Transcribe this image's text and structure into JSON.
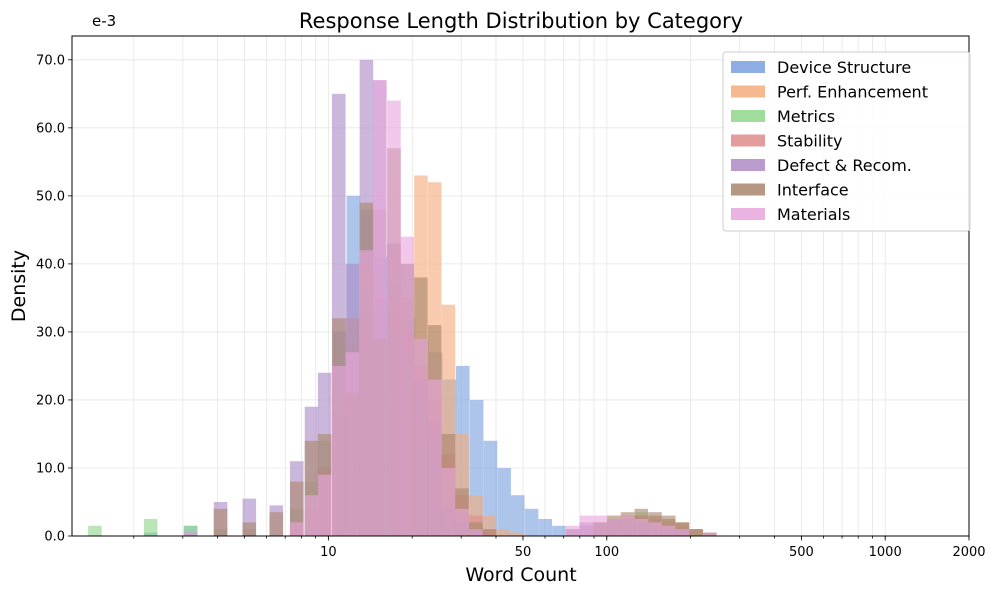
{
  "chart_data": {
    "type": "histogram",
    "title": "Response Length Distribution by Category",
    "xlabel": "Word Count",
    "ylabel": "Density",
    "offset_label": "e-3",
    "x_scale": "log",
    "xlim": [
      1.2,
      2000
    ],
    "ylim": [
      0,
      73.5
    ],
    "x_tick_labels": [
      "10",
      "50",
      "100",
      "500",
      "1000",
      "2000"
    ],
    "x_tick_values": [
      10,
      50,
      100,
      500,
      1000,
      2000
    ],
    "y_tick_labels": [
      "0.0",
      "10.0",
      "20.0",
      "30.0",
      "40.0",
      "50.0",
      "60.0",
      "70.0"
    ],
    "y_tick_values": [
      0,
      10,
      20,
      30,
      40,
      50,
      60,
      70
    ],
    "grid": true,
    "legend_position": "top-right",
    "series": [
      {
        "name": "Device Structure",
        "color": "#7a9fdf",
        "bins": [
          [
            2.3,
            0.5
          ],
          [
            3.2,
            1.5
          ],
          [
            8.7,
            2
          ],
          [
            11,
            30
          ],
          [
            12.3,
            50
          ],
          [
            13.8,
            48
          ],
          [
            15.4,
            41
          ],
          [
            17.3,
            37
          ],
          [
            19.4,
            32
          ],
          [
            21.7,
            29
          ],
          [
            24.3,
            27
          ],
          [
            27.2,
            23
          ],
          [
            30.4,
            25
          ],
          [
            34.1,
            20
          ],
          [
            38.2,
            14
          ],
          [
            42.8,
            10
          ],
          [
            47.9,
            6
          ],
          [
            53.7,
            4
          ],
          [
            60.1,
            2.5
          ],
          [
            67.3,
            1.5
          ],
          [
            75.4,
            1
          ],
          [
            84.5,
            1.5
          ],
          [
            94.6,
            2
          ],
          [
            106,
            2.5
          ],
          [
            118.7,
            2.5
          ],
          [
            133,
            3
          ],
          [
            149,
            2.5
          ],
          [
            166.9,
            2
          ],
          [
            186.9,
            1.5
          ],
          [
            209.3,
            1
          ],
          [
            234.5,
            0.5
          ]
        ]
      },
      {
        "name": "Perf. Enhancement",
        "color": "#f4ab7c",
        "bins": [
          [
            7.7,
            1
          ],
          [
            8.7,
            2
          ],
          [
            9.7,
            5
          ],
          [
            10.9,
            12
          ],
          [
            12.2,
            28
          ],
          [
            13.7,
            40
          ],
          [
            15.3,
            48
          ],
          [
            17.2,
            43
          ],
          [
            19.2,
            35
          ],
          [
            21.5,
            53
          ],
          [
            24.1,
            52
          ],
          [
            27,
            34
          ],
          [
            30.2,
            15
          ],
          [
            33.9,
            6
          ],
          [
            37.9,
            3
          ],
          [
            42.5,
            1
          ],
          [
            47.6,
            0.5
          ],
          [
            75.4,
            1
          ],
          [
            84.5,
            1.5
          ],
          [
            94.6,
            2
          ],
          [
            106,
            2
          ],
          [
            118.7,
            2.5
          ],
          [
            133,
            2.5
          ],
          [
            149,
            2
          ],
          [
            166.9,
            2
          ],
          [
            186.9,
            1.5
          ],
          [
            209.3,
            1
          ]
        ]
      },
      {
        "name": "Metrics",
        "color": "#8fd68a",
        "bins": [
          [
            1.45,
            1.5
          ],
          [
            2.3,
            2.5
          ],
          [
            3.2,
            1.5
          ],
          [
            4.1,
            1
          ],
          [
            5.2,
            1
          ],
          [
            7.7,
            4
          ],
          [
            8.7,
            8
          ],
          [
            9.7,
            14
          ],
          [
            10.9,
            22
          ],
          [
            12.2,
            32
          ],
          [
            13.7,
            36
          ],
          [
            15.3,
            34
          ],
          [
            17.2,
            30
          ],
          [
            19.2,
            25
          ],
          [
            21.5,
            20
          ],
          [
            24.1,
            14
          ],
          [
            27,
            8
          ],
          [
            30.2,
            4
          ],
          [
            33.9,
            2
          ],
          [
            94.6,
            1
          ],
          [
            106,
            2
          ],
          [
            118.7,
            3
          ],
          [
            133,
            3.5
          ],
          [
            149,
            3
          ],
          [
            166.9,
            2.5
          ],
          [
            186.9,
            2
          ],
          [
            209.3,
            1
          ]
        ]
      },
      {
        "name": "Stability",
        "color": "#e08b8b",
        "bins": [
          [
            7.7,
            2
          ],
          [
            8.7,
            4
          ],
          [
            9.7,
            10
          ],
          [
            10.9,
            18
          ],
          [
            12.2,
            32
          ],
          [
            13.7,
            33
          ],
          [
            15.3,
            35
          ],
          [
            17.2,
            33
          ],
          [
            19.2,
            30
          ],
          [
            21.5,
            25
          ],
          [
            24.1,
            20
          ],
          [
            27,
            12
          ],
          [
            30.2,
            6
          ],
          [
            33.9,
            3
          ],
          [
            37.9,
            1
          ],
          [
            94.6,
            1.5
          ],
          [
            106,
            2.5
          ],
          [
            118.7,
            3
          ],
          [
            133,
            3
          ],
          [
            149,
            3
          ],
          [
            166.9,
            2.5
          ],
          [
            186.9,
            2
          ],
          [
            209.3,
            1
          ],
          [
            234.5,
            0.5
          ]
        ]
      },
      {
        "name": "Defect & Recom.",
        "color": "#ad8ac6",
        "bins": [
          [
            3.2,
            0.5
          ],
          [
            4.1,
            5
          ],
          [
            5.2,
            5.5
          ],
          [
            6.5,
            4.5
          ],
          [
            7.7,
            11
          ],
          [
            8.7,
            19
          ],
          [
            9.7,
            24
          ],
          [
            10.9,
            65
          ],
          [
            12.2,
            40
          ],
          [
            13.7,
            70
          ],
          [
            15.3,
            67
          ],
          [
            17.2,
            43
          ],
          [
            19.2,
            40
          ],
          [
            21.5,
            23
          ],
          [
            24.1,
            17
          ],
          [
            27,
            4
          ],
          [
            30.2,
            2
          ],
          [
            33.9,
            1
          ],
          [
            75.4,
            1
          ],
          [
            84.5,
            2
          ],
          [
            94.6,
            2
          ],
          [
            106,
            2.5
          ],
          [
            118.7,
            2.5
          ],
          [
            133,
            2
          ],
          [
            149,
            1.5
          ],
          [
            166.9,
            1
          ],
          [
            186.9,
            1
          ]
        ]
      },
      {
        "name": "Interface",
        "color": "#a9866c",
        "bins": [
          [
            4.1,
            4
          ],
          [
            5.2,
            2
          ],
          [
            6.5,
            3.5
          ],
          [
            7.7,
            8
          ],
          [
            8.7,
            14
          ],
          [
            9.7,
            15
          ],
          [
            10.9,
            32
          ],
          [
            12.2,
            21
          ],
          [
            13.7,
            49
          ],
          [
            15.3,
            29
          ],
          [
            17.2,
            57
          ],
          [
            19.2,
            40
          ],
          [
            21.5,
            38
          ],
          [
            24.1,
            31
          ],
          [
            27,
            15
          ],
          [
            30.2,
            7
          ],
          [
            33.9,
            2
          ],
          [
            37.9,
            1
          ],
          [
            94.6,
            2
          ],
          [
            106,
            3
          ],
          [
            118.7,
            3.5
          ],
          [
            133,
            4
          ],
          [
            149,
            3.5
          ],
          [
            166.9,
            3
          ],
          [
            186.9,
            2
          ],
          [
            209.3,
            1
          ]
        ]
      },
      {
        "name": "Materials",
        "color": "#e8a6dd",
        "bins": [
          [
            3.2,
            0.5
          ],
          [
            7.7,
            2
          ],
          [
            8.7,
            6
          ],
          [
            9.7,
            9
          ],
          [
            10.9,
            25
          ],
          [
            12.2,
            27
          ],
          [
            13.7,
            42
          ],
          [
            15.3,
            67
          ],
          [
            17.2,
            64
          ],
          [
            19.2,
            44
          ],
          [
            21.5,
            29
          ],
          [
            24.1,
            23
          ],
          [
            27,
            10
          ],
          [
            30.2,
            4
          ],
          [
            33.9,
            1
          ],
          [
            75.4,
            1.5
          ],
          [
            84.5,
            3
          ],
          [
            94.6,
            3
          ],
          [
            106,
            2.5
          ],
          [
            118.7,
            3
          ],
          [
            133,
            2.5
          ],
          [
            149,
            2
          ],
          [
            166.9,
            1.5
          ],
          [
            186.9,
            1
          ]
        ]
      }
    ]
  }
}
